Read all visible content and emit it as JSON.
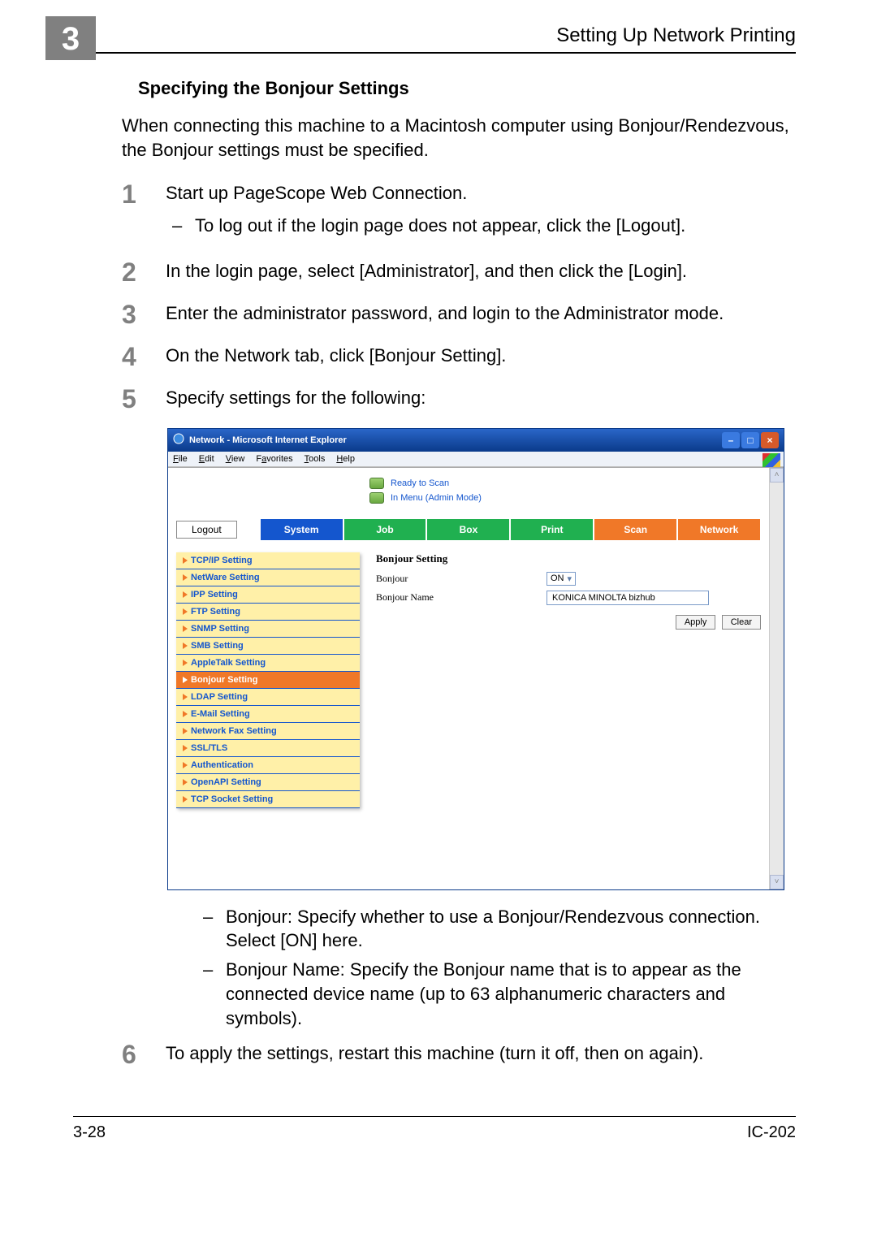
{
  "header": {
    "chapter": "3",
    "title": "Setting Up Network Printing"
  },
  "section": {
    "title": "Specifying the Bonjour Settings"
  },
  "intro": "When connecting this machine to a Macintosh computer using Bonjour/Rendezvous, the Bonjour settings must be specified.",
  "steps": [
    {
      "n": "1",
      "text": "Start up PageScope Web Connection.",
      "subs": [
        "To log out if the login page does not appear, click the [Logout]."
      ]
    },
    {
      "n": "2",
      "text": "In the login page, select [Administrator], and then click the [Login]."
    },
    {
      "n": "3",
      "text": "Enter the administrator password, and login to the Administrator mode."
    },
    {
      "n": "4",
      "text": "On the Network tab, click [Bonjour Setting]."
    },
    {
      "n": "5",
      "text": "Specify settings for the following:"
    }
  ],
  "screenshot": {
    "window_title": "Network - Microsoft Internet Explorer",
    "menus": [
      "File",
      "Edit",
      "View",
      "Favorites",
      "Tools",
      "Help"
    ],
    "status": [
      {
        "text": "Ready to Scan"
      },
      {
        "text": "In Menu (Admin Mode)"
      }
    ],
    "logout_label": "Logout",
    "tabs": [
      "System",
      "Job",
      "Box",
      "Print",
      "Scan",
      "Network"
    ],
    "sidebar": [
      "TCP/IP Setting",
      "NetWare Setting",
      "IPP Setting",
      "FTP Setting",
      "SNMP Setting",
      "SMB Setting",
      "AppleTalk Setting",
      "Bonjour Setting",
      "LDAP Setting",
      "E-Mail Setting",
      "Network Fax Setting",
      "SSL/TLS",
      "Authentication",
      "OpenAPI Setting",
      "TCP Socket Setting"
    ],
    "active_sidebar_index": 7,
    "panel": {
      "title": "Bonjour Setting",
      "row1_label": "Bonjour",
      "row1_value": "ON",
      "row2_label": "Bonjour Name",
      "row2_value": "KONICA MINOLTA bizhub ",
      "apply": "Apply",
      "clear": "Clear"
    }
  },
  "post_bullets": [
    "Bonjour: Specify whether to use a Bonjour/Rendezvous connection. Select [ON] here.",
    "Bonjour Name: Specify the Bonjour name that is to appear as the connected device name (up to 63 alphanumeric characters and symbols)."
  ],
  "step6": {
    "n": "6",
    "text": "To apply the settings, restart this machine (turn it off, then on again)."
  },
  "footer": {
    "left": "3-28",
    "right": "IC-202"
  }
}
